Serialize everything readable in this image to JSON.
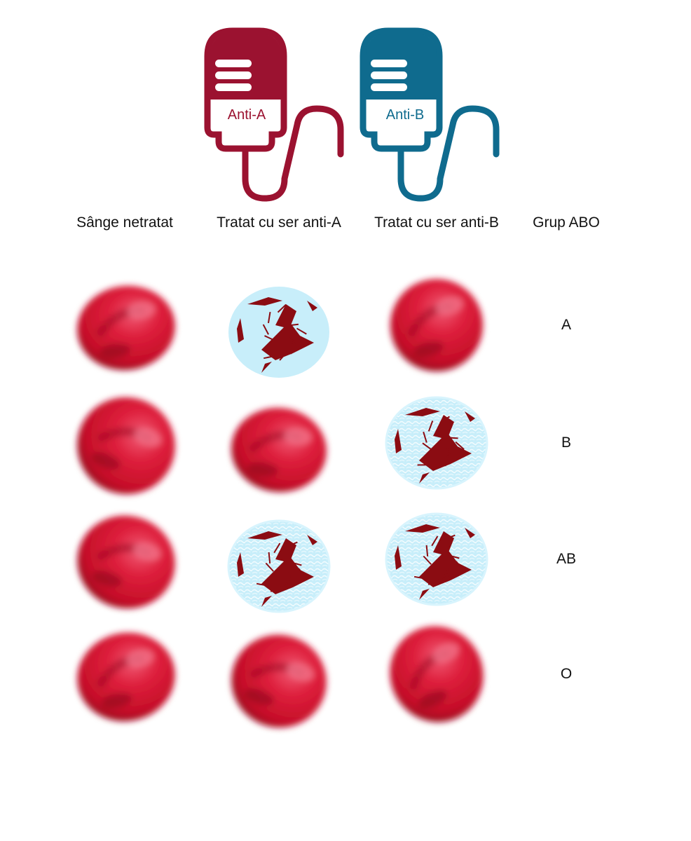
{
  "bags": [
    {
      "label": "Anti-A",
      "color": "#9b1230"
    },
    {
      "label": "Anti-B",
      "color": "#0f6b8e"
    }
  ],
  "headers": [
    "Sânge netratat",
    "Tratat cu ser anti-A",
    "Tratat cu ser anti-B",
    "Grup ABO"
  ],
  "rows": [
    {
      "group": "A",
      "cells": [
        "normal",
        "agglutinated",
        "normal"
      ]
    },
    {
      "group": "B",
      "cells": [
        "normal",
        "normal",
        "agglutinated"
      ]
    },
    {
      "group": "AB",
      "cells": [
        "normal",
        "agglutinated",
        "agglutinated"
      ]
    },
    {
      "group": "O",
      "cells": [
        "normal",
        "normal",
        "normal"
      ]
    }
  ],
  "colors": {
    "cell_red": "#d4142e",
    "clump": "#8b0c12",
    "serum": "#c8eefa"
  }
}
